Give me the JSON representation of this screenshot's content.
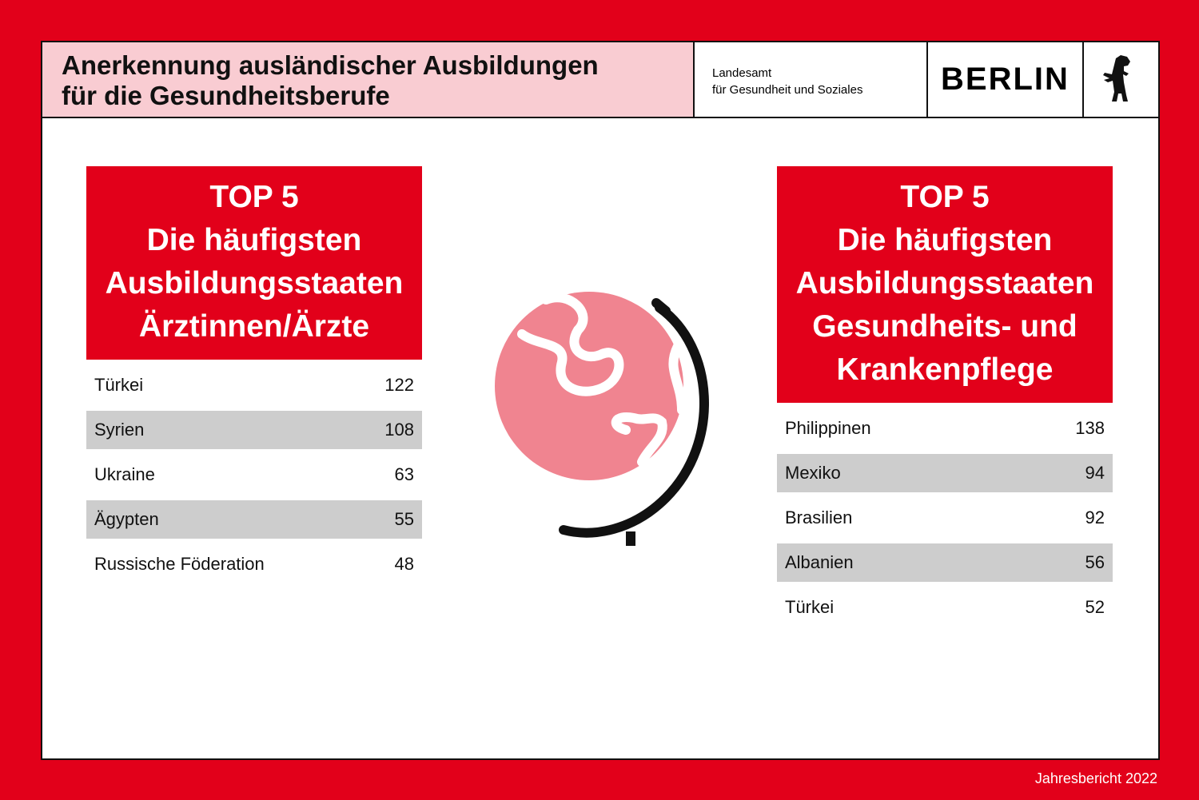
{
  "header": {
    "title": [
      "Anerkennung ausländischer Ausbildungen",
      "für die Gesundheitsberufe"
    ],
    "org": [
      "Landesamt",
      "für Gesundheit und Soziales"
    ],
    "brand": "BERLIN"
  },
  "panels": [
    {
      "heading": [
        "TOP 5",
        "Die häufigsten",
        "Ausbildungsstaaten",
        "Ärztinnen/Ärzte"
      ],
      "rows": [
        [
          "Türkei",
          122
        ],
        [
          "Syrien",
          108
        ],
        [
          "Ukraine",
          63
        ],
        [
          "Ägypten",
          55
        ],
        [
          "Russische Föderation",
          48
        ]
      ]
    },
    {
      "heading": [
        "TOP 5",
        "Die häufigsten",
        "Ausbildungsstaaten",
        "Gesundheits- und",
        "Krankenpflege"
      ],
      "rows": [
        [
          "Philippinen",
          138
        ],
        [
          "Mexiko",
          94
        ],
        [
          "Brasilien",
          92
        ],
        [
          "Albanien",
          56
        ],
        [
          "Türkei",
          52
        ]
      ]
    }
  ],
  "footer": "Jahresbericht 2022"
}
